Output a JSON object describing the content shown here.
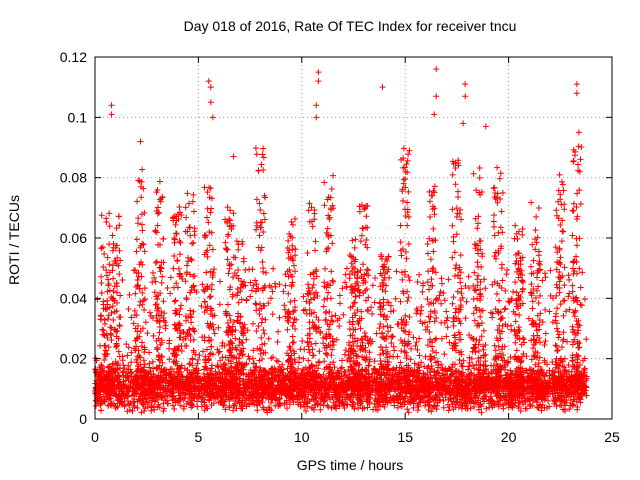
{
  "chart_data": {
    "type": "scatter",
    "title": "Day 018 of 2016, Rate Of TEC Index for receiver tncu",
    "xlabel": "GPS time / hours",
    "ylabel": "ROTI / TECUs",
    "xlim": [
      0,
      25
    ],
    "ylim": [
      0,
      0.12
    ],
    "xticks": [
      0,
      5,
      10,
      15,
      20,
      25
    ],
    "xtick_labels": [
      "0",
      "5",
      "10",
      "15",
      "20",
      "25"
    ],
    "yticks": [
      0,
      0.02,
      0.04,
      0.06,
      0.08,
      0.1,
      0.12
    ],
    "ytick_labels": [
      "0",
      "0.02",
      "0.04",
      "0.06",
      "0.08",
      "0.1",
      "0.12"
    ],
    "grid": true,
    "marker": "plus",
    "series": [
      {
        "name": "ROTI",
        "color": "#ff0000",
        "x_range_hours": [
          0,
          23.8
        ],
        "typical_baseline": [
          0.005,
          0.015
        ],
        "notable_points": [
          {
            "x": 0.8,
            "y": 0.104
          },
          {
            "x": 0.8,
            "y": 0.101
          },
          {
            "x": 2.2,
            "y": 0.092
          },
          {
            "x": 5.5,
            "y": 0.112
          },
          {
            "x": 5.6,
            "y": 0.11
          },
          {
            "x": 5.6,
            "y": 0.105
          },
          {
            "x": 5.7,
            "y": 0.1
          },
          {
            "x": 6.7,
            "y": 0.087
          },
          {
            "x": 10.8,
            "y": 0.115
          },
          {
            "x": 10.8,
            "y": 0.112
          },
          {
            "x": 10.7,
            "y": 0.104
          },
          {
            "x": 10.7,
            "y": 0.1
          },
          {
            "x": 13.9,
            "y": 0.11
          },
          {
            "x": 16.5,
            "y": 0.116
          },
          {
            "x": 16.5,
            "y": 0.107
          },
          {
            "x": 16.4,
            "y": 0.101
          },
          {
            "x": 17.9,
            "y": 0.111
          },
          {
            "x": 17.9,
            "y": 0.107
          },
          {
            "x": 17.8,
            "y": 0.098
          },
          {
            "x": 18.9,
            "y": 0.097
          },
          {
            "x": 23.3,
            "y": 0.111
          },
          {
            "x": 23.3,
            "y": 0.108
          },
          {
            "x": 23.4,
            "y": 0.095
          }
        ],
        "activity_bursts_hours": [
          0.5,
          1.0,
          2.2,
          3.1,
          4.0,
          4.6,
          5.5,
          6.5,
          7.0,
          8.0,
          9.5,
          10.5,
          11.3,
          12.5,
          13.0,
          14.0,
          15.0,
          16.3,
          17.5,
          18.5,
          19.5,
          20.5,
          21.3,
          22.5,
          23.3
        ]
      }
    ]
  }
}
